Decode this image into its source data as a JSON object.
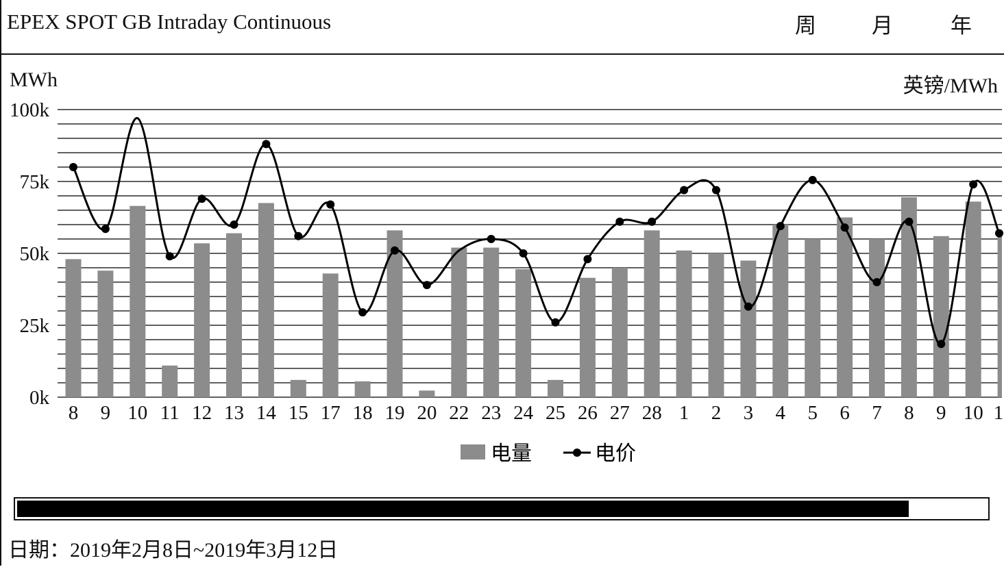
{
  "header": {
    "title": "EPEX SPOT GB Intraday Continuous",
    "ranges": [
      "周",
      "月",
      "年"
    ]
  },
  "units": {
    "left": "MWh",
    "right": "英镑/MWh"
  },
  "footer": {
    "date_range": "日期：2019年2月8日~2019年3月12日"
  },
  "scroll": {
    "visible_fraction": 0.92
  },
  "colors": {
    "bar": "#8c8c8c",
    "line": "#000000",
    "grid": "#000000",
    "text": "#111111"
  },
  "chart_data": {
    "type": "bar",
    "categories": [
      "8",
      "9",
      "10",
      "11",
      "12",
      "13",
      "14",
      "15",
      "17",
      "18",
      "19",
      "20",
      "22",
      "23",
      "24",
      "25",
      "26",
      "27",
      "28",
      "1",
      "2",
      "3",
      "4",
      "5",
      "6",
      "7",
      "8",
      "9",
      "10",
      "1"
    ],
    "series": [
      {
        "name": "电量",
        "type": "bar",
        "axis": "left",
        "values": [
          48000,
          44000,
          66500,
          11000,
          53500,
          57000,
          67500,
          6000,
          43000,
          5500,
          58000,
          2300,
          52000,
          52000,
          44500,
          6000,
          41500,
          45000,
          58000,
          51000,
          50000,
          47500,
          60000,
          55000,
          62500,
          55000,
          69500,
          56000,
          68000,
          57000
        ]
      },
      {
        "name": "电价",
        "type": "line",
        "axis": "right",
        "values": [
          80,
          58.5,
          null,
          49,
          69,
          60,
          88,
          56,
          67,
          29.5,
          51,
          39,
          null,
          55,
          50,
          26,
          48,
          61,
          61,
          72,
          72,
          31.5,
          59.5,
          75.5,
          59,
          40,
          61,
          18.5,
          74,
          57
        ]
      }
    ],
    "y_left": {
      "min": 0,
      "max": 100000,
      "ticks": [
        "0k",
        "25k",
        "50k",
        "75k",
        "100k"
      ]
    },
    "y_right": {
      "min": 0,
      "max": 100
    },
    "legend": {
      "position": "bottom",
      "items": [
        "电量",
        "电价"
      ]
    },
    "grid": true
  }
}
